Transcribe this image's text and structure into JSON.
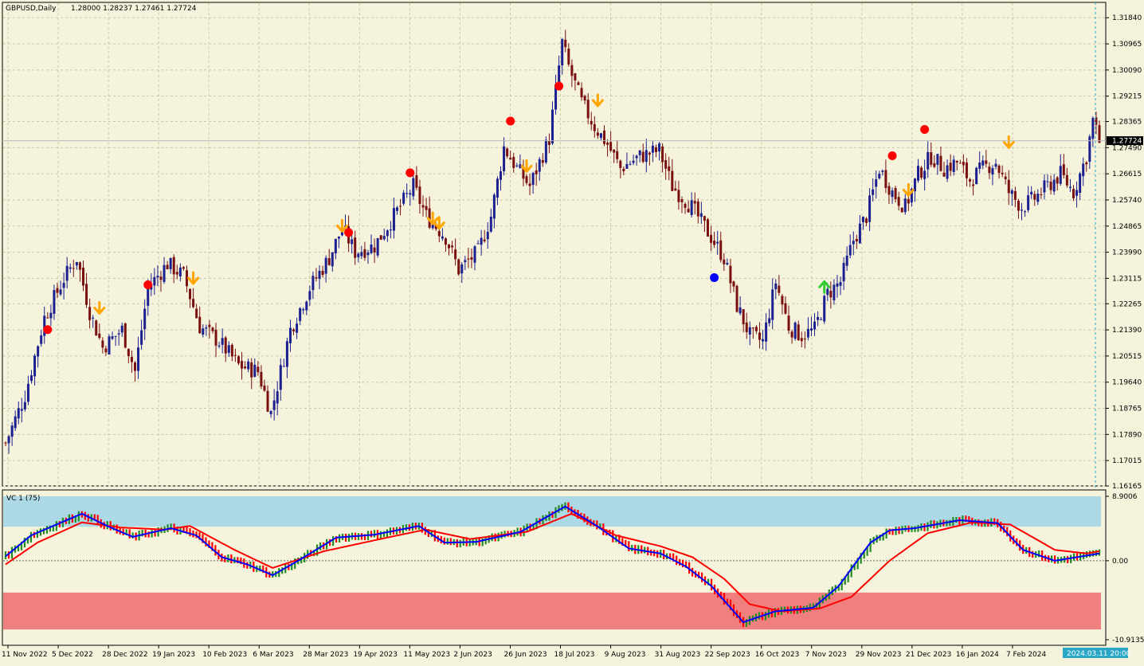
{
  "header": {
    "symbol_label": "GBPUSD,Daily",
    "ohlc_label": "1.28000 1.28237 1.27461 1.27724"
  },
  "indicator": {
    "label": "VC 1 (75)",
    "ticks": [
      "8.9006",
      "0.00",
      "-10.9135"
    ]
  },
  "current_price": "1.27724",
  "cursor_time": "2024.03.11 20:00",
  "colors": {
    "background": "#F5F3DC",
    "bull_candle": "#1B1F8F",
    "bear_candle": "#7A0F0F",
    "fast_line": "#0000FF",
    "slow_line": "#FF0000",
    "overbought_zone": "#ADD8E6",
    "oversold_zone": "#F08080",
    "dot_red": "#FF0000",
    "dot_blue": "#0000FF",
    "arrow_down": "#FFA500",
    "arrow_up": "#32CD32",
    "bar_up": "#228B22",
    "bar_down": "#FF0000"
  },
  "chart_data": [
    {
      "type": "candlestick",
      "price_ticks": [
        "1.31840",
        "1.30965",
        "1.30090",
        "1.29215",
        "1.28365",
        "1.27490",
        "1.26615",
        "1.25740",
        "1.24865",
        "1.23990",
        "1.23115",
        "1.22265",
        "1.21390",
        "1.20515",
        "1.19640",
        "1.18765",
        "1.17890",
        "1.17015",
        "1.16165"
      ],
      "ylim": [
        1.16165,
        1.3198
      ],
      "date_ticks": [
        "11 Nov 2022",
        "5 Dec 2022",
        "28 Dec 2022",
        "19 Jan 2023",
        "10 Feb 2023",
        "6 Mar 2023",
        "28 Mar 2023",
        "19 Apr 2023",
        "11 May 2023",
        "2 Jun 2023",
        "26 Jun 2023",
        "18 Jul 2023",
        "9 Aug 2023",
        "31 Aug 2023",
        "22 Sep 2023",
        "16 Oct 2023",
        "7 Nov 2023",
        "29 Nov 2023",
        "21 Dec 2023",
        "16 Jan 2024",
        "7 Feb 2024"
      ],
      "close_keypoints": [
        [
          0,
          1.176
        ],
        [
          6,
          1.192
        ],
        [
          12,
          1.218
        ],
        [
          18,
          1.231
        ],
        [
          22,
          1.238
        ],
        [
          26,
          1.22
        ],
        [
          30,
          1.208
        ],
        [
          36,
          1.214
        ],
        [
          40,
          1.2
        ],
        [
          44,
          1.228
        ],
        [
          50,
          1.236
        ],
        [
          55,
          1.232
        ],
        [
          60,
          1.215
        ],
        [
          66,
          1.21
        ],
        [
          72,
          1.202
        ],
        [
          78,
          1.2
        ],
        [
          82,
          1.186
        ],
        [
          88,
          1.214
        ],
        [
          94,
          1.228
        ],
        [
          100,
          1.238
        ],
        [
          104,
          1.248
        ],
        [
          108,
          1.24
        ],
        [
          114,
          1.242
        ],
        [
          120,
          1.252
        ],
        [
          126,
          1.262
        ],
        [
          130,
          1.252
        ],
        [
          136,
          1.245
        ],
        [
          140,
          1.234
        ],
        [
          146,
          1.24
        ],
        [
          150,
          1.252
        ],
        [
          154,
          1.275
        ],
        [
          158,
          1.268
        ],
        [
          162,
          1.262
        ],
        [
          168,
          1.278
        ],
        [
          172,
          1.31
        ],
        [
          174,
          1.302
        ],
        [
          178,
          1.29
        ],
        [
          182,
          1.282
        ],
        [
          186,
          1.276
        ],
        [
          190,
          1.268
        ],
        [
          196,
          1.272
        ],
        [
          202,
          1.274
        ],
        [
          206,
          1.262
        ],
        [
          212,
          1.255
        ],
        [
          218,
          1.245
        ],
        [
          222,
          1.238
        ],
        [
          226,
          1.222
        ],
        [
          230,
          1.212
        ],
        [
          234,
          1.21
        ],
        [
          238,
          1.23
        ],
        [
          242,
          1.215
        ],
        [
          246,
          1.212
        ],
        [
          250,
          1.214
        ],
        [
          254,
          1.226
        ],
        [
          258,
          1.23
        ],
        [
          262,
          1.244
        ],
        [
          266,
          1.252
        ],
        [
          270,
          1.268
        ],
        [
          274,
          1.26
        ],
        [
          278,
          1.255
        ],
        [
          282,
          1.266
        ],
        [
          286,
          1.272
        ],
        [
          290,
          1.268
        ],
        [
          294,
          1.27
        ],
        [
          298,
          1.264
        ],
        [
          302,
          1.268
        ],
        [
          306,
          1.27
        ],
        [
          310,
          1.26
        ],
        [
          314,
          1.255
        ],
        [
          318,
          1.258
        ],
        [
          322,
          1.262
        ],
        [
          326,
          1.266
        ],
        [
          330,
          1.26
        ],
        [
          334,
          1.272
        ],
        [
          336,
          1.284
        ],
        [
          338,
          1.277
        ]
      ],
      "markers": {
        "red_dots": [
          [
            13,
            1.214
          ],
          [
            44,
            1.229
          ],
          [
            106,
            1.2465
          ],
          [
            125,
            1.2665
          ],
          [
            156,
            1.2838
          ],
          [
            171,
            1.2955
          ],
          [
            274,
            1.2722
          ],
          [
            284,
            1.281
          ]
        ],
        "blue_dots": [
          [
            219,
            1.2314
          ]
        ],
        "down_arrows": [
          [
            29,
            1.221
          ],
          [
            58,
            1.231
          ],
          [
            104,
            1.2485
          ],
          [
            132,
            1.251
          ],
          [
            134,
            1.2495
          ],
          [
            161,
            1.2685
          ],
          [
            183,
            1.2905
          ],
          [
            279,
            1.2605
          ],
          [
            310,
            1.2765
          ]
        ],
        "up_arrows": [
          [
            253,
            1.2285
          ]
        ]
      }
    },
    {
      "type": "line",
      "name": "VC 1 (75)",
      "ylim": [
        -10.9135,
        8.9006
      ],
      "zones": {
        "overbought": [
          4.7,
          8.9006
        ],
        "oversold": [
          -9.5,
          -4.4
        ]
      },
      "fast_keypoints": [
        [
          0,
          0.6
        ],
        [
          8,
          3.5
        ],
        [
          24,
          6.5
        ],
        [
          32,
          4.8
        ],
        [
          40,
          3.3
        ],
        [
          52,
          4.5
        ],
        [
          60,
          3.5
        ],
        [
          68,
          0.5
        ],
        [
          76,
          -0.5
        ],
        [
          84,
          -2.0
        ],
        [
          92,
          0.0
        ],
        [
          104,
          3.2
        ],
        [
          116,
          3.6
        ],
        [
          130,
          4.8
        ],
        [
          138,
          2.5
        ],
        [
          148,
          2.6
        ],
        [
          162,
          4.0
        ],
        [
          176,
          7.5
        ],
        [
          186,
          4.8
        ],
        [
          196,
          1.7
        ],
        [
          206,
          1.0
        ],
        [
          214,
          -0.8
        ],
        [
          222,
          -3.5
        ],
        [
          232,
          -8.5
        ],
        [
          242,
          -7.0
        ],
        [
          254,
          -6.5
        ],
        [
          262,
          -3.5
        ],
        [
          272,
          2.5
        ],
        [
          278,
          4.2
        ],
        [
          286,
          4.5
        ],
        [
          300,
          5.6
        ],
        [
          312,
          5.2
        ],
        [
          320,
          1.5
        ],
        [
          330,
          0.0
        ],
        [
          344,
          1.0
        ]
      ],
      "slow_keypoints": [
        [
          0,
          -0.5
        ],
        [
          10,
          2.5
        ],
        [
          24,
          5.3
        ],
        [
          36,
          4.6
        ],
        [
          50,
          4.3
        ],
        [
          58,
          4.8
        ],
        [
          72,
          1.5
        ],
        [
          84,
          -1.0
        ],
        [
          100,
          1.3
        ],
        [
          120,
          3.2
        ],
        [
          132,
          4.3
        ],
        [
          146,
          3.0
        ],
        [
          164,
          4.0
        ],
        [
          178,
          6.5
        ],
        [
          192,
          3.5
        ],
        [
          206,
          2.0
        ],
        [
          216,
          0.5
        ],
        [
          226,
          -2.5
        ],
        [
          234,
          -6.0
        ],
        [
          244,
          -7.0
        ],
        [
          256,
          -6.6
        ],
        [
          266,
          -5.0
        ],
        [
          278,
          0.0
        ],
        [
          290,
          3.8
        ],
        [
          304,
          5.3
        ],
        [
          316,
          5.0
        ],
        [
          330,
          1.5
        ],
        [
          340,
          1.0
        ],
        [
          344,
          1.3
        ]
      ]
    }
  ]
}
